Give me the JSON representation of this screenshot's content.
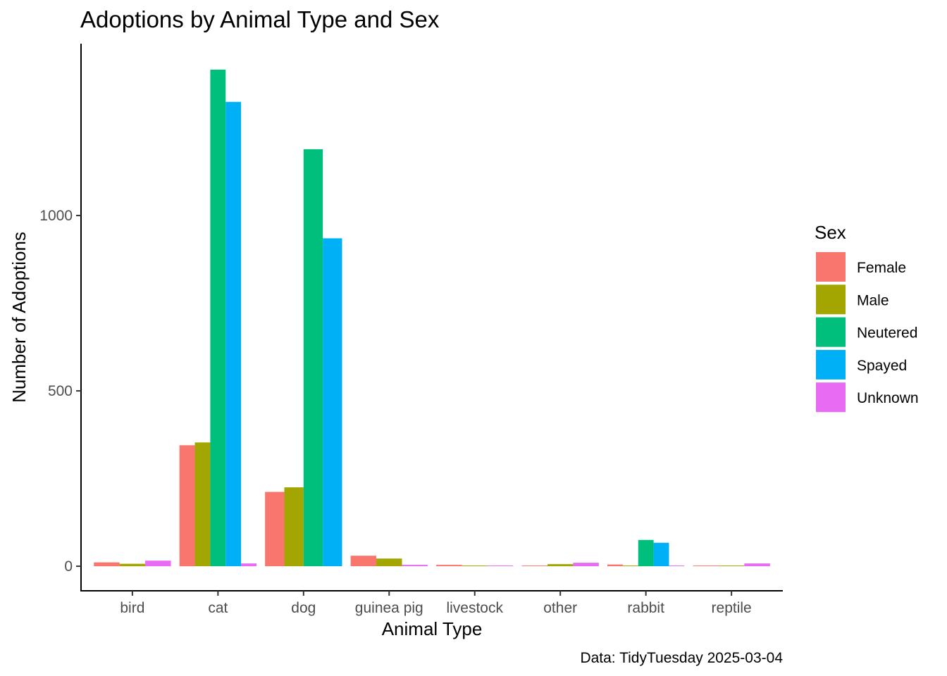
{
  "chart_data": {
    "type": "bar",
    "title": "Adoptions by Animal Type and Sex",
    "xlabel": "Animal Type",
    "ylabel": "Number of Adoptions",
    "caption": "Data: TidyTuesday 2025-03-04",
    "categories": [
      "bird",
      "cat",
      "dog",
      "guinea pig",
      "livestock",
      "other",
      "rabbit",
      "reptile"
    ],
    "ylim": [
      -70,
      1490
    ],
    "yticks": [
      0,
      500,
      1000
    ],
    "legend_title": "Sex",
    "legend_position": "right",
    "grid": false,
    "series": [
      {
        "name": "Female",
        "color": "#F8766D",
        "values": [
          11,
          345,
          212,
          30,
          4,
          2,
          5,
          2
        ]
      },
      {
        "name": "Male",
        "color": "#A3A500",
        "values": [
          7,
          353,
          225,
          22,
          2,
          6,
          2,
          2
        ]
      },
      {
        "name": "Neutered",
        "color": "#00BF7D",
        "values": [
          null,
          1416,
          1189,
          null,
          null,
          null,
          75,
          null
        ]
      },
      {
        "name": "Spayed",
        "color": "#00B0F6",
        "values": [
          null,
          1324,
          935,
          null,
          null,
          null,
          67,
          null
        ]
      },
      {
        "name": "Unknown",
        "color": "#E76BF3",
        "values": [
          16,
          8,
          null,
          4,
          2,
          10,
          2,
          8
        ]
      }
    ]
  }
}
